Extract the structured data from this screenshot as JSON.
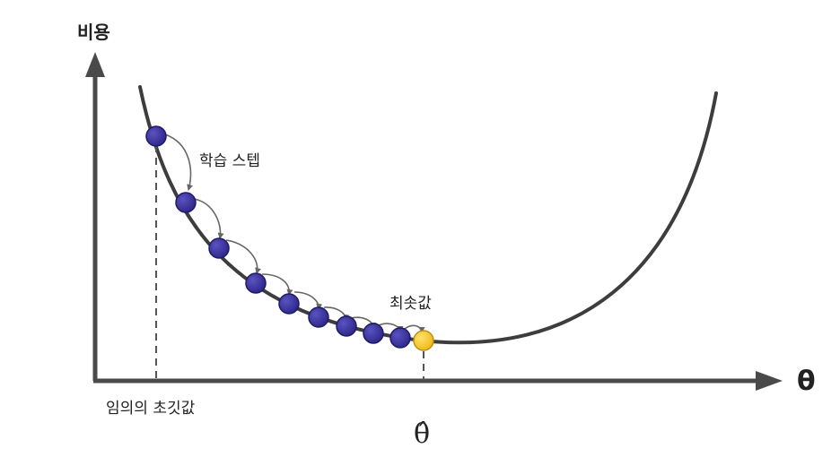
{
  "labels": {
    "y_axis": "비용",
    "x_axis": "θ",
    "learning_step": "학습 스텝",
    "minimum": "최솟값",
    "random_init": "임의의 초깃값",
    "theta_hat": "θ̂"
  },
  "colors": {
    "axis": "#4a4a4a",
    "curve": "#3d3d3d",
    "step_point": "#3a3296",
    "step_point_outline": "#1e1a66",
    "minimum_point": "#f6c623",
    "minimum_point_outline": "#b8901a",
    "arrow": "#666666",
    "dashed": "#555555"
  }
}
